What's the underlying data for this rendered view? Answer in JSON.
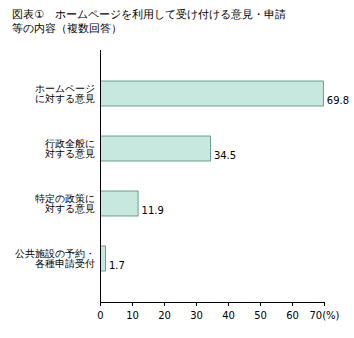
{
  "chart_data": {
    "type": "bar",
    "orientation": "horizontal",
    "title": "図表①　ホームページを利用して受け付ける意見・申請\n等の内容（複数回答）",
    "categories": [
      "ホームページ\nに対する意見",
      "行政全般に\n対する意見",
      "特定の政策に\n対する意見",
      "公共施設の予約・\n各種申請受付"
    ],
    "values": [
      69.8,
      34.5,
      11.9,
      1.7
    ],
    "color": "#c6e8df",
    "xlim": [
      0,
      70
    ],
    "xticks": [
      0,
      10,
      20,
      30,
      40,
      50,
      60,
      {
        "value": 70,
        "label": "70(%)"
      }
    ],
    "data_labels": true,
    "grid": false
  }
}
